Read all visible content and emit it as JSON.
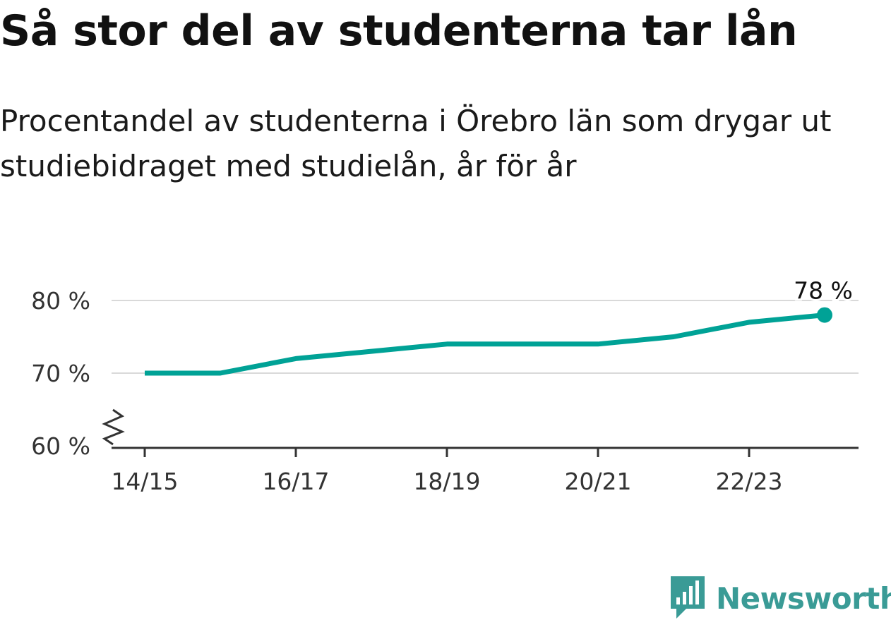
{
  "title": "Så stor del av studenterna tar lån",
  "subtitle": "Procentandel av studenterna i Örebro län som drygar ut studiebidraget med studielån, år för år",
  "brand": {
    "name": "Newsworthy",
    "color": "#3a9b96"
  },
  "colors": {
    "line": "#00a296",
    "grid": "#d9d9d9",
    "axis": "#333333"
  },
  "chart_data": {
    "type": "line",
    "x": [
      "14/15",
      "15/16",
      "16/17",
      "17/18",
      "18/19",
      "19/20",
      "20/21",
      "21/22",
      "22/23",
      "23/24"
    ],
    "series": [
      {
        "values": [
          70,
          70,
          72,
          73,
          74,
          74,
          74,
          75,
          77,
          78
        ]
      }
    ],
    "x_tick_labels": [
      "14/15",
      "16/17",
      "18/19",
      "20/21",
      "22/23"
    ],
    "y_ticks": [
      60,
      70,
      80
    ],
    "y_tick_labels": [
      "60 %",
      "70 %",
      "80 %"
    ],
    "ylim": [
      60,
      80
    ],
    "y_axis_break": true,
    "grid": true,
    "end_label": "78 %"
  }
}
